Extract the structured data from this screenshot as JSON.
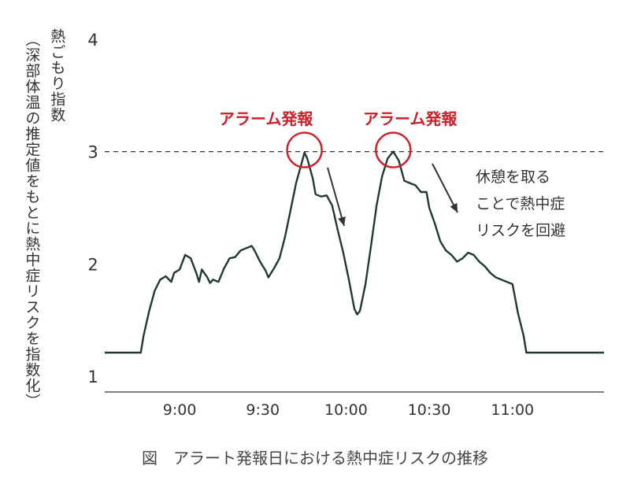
{
  "chart_data": {
    "type": "line",
    "title": "図　アラート発報日における熱中症リスクの推移",
    "ylabel_main": "熱ごもり指数",
    "ylabel_sub": "（深部体温の推定値をもとに熱中症リスクを指数化）",
    "ylim": [
      1,
      4
    ],
    "yticks": [
      "1",
      "2",
      "3",
      "4"
    ],
    "xticks": [
      {
        "label": "9:00",
        "t": 540
      },
      {
        "label": "9:30",
        "t": 570
      },
      {
        "label": "10:00",
        "t": 600
      },
      {
        "label": "10:30",
        "t": 630
      },
      {
        "label": "11:00",
        "t": 660
      }
    ],
    "xlim": [
      513,
      693
    ],
    "threshold": 3.0,
    "grid": false,
    "series": [
      {
        "color": "#1f3a34",
        "points": [
          [
            513,
            1.21
          ],
          [
            526,
            1.21
          ],
          [
            527,
            1.36
          ],
          [
            529,
            1.58
          ],
          [
            531,
            1.76
          ],
          [
            533,
            1.86
          ],
          [
            535,
            1.89
          ],
          [
            537,
            1.84
          ],
          [
            538,
            1.92
          ],
          [
            540,
            1.95
          ],
          [
            542,
            2.08
          ],
          [
            544,
            2.05
          ],
          [
            546,
            1.92
          ],
          [
            547,
            1.84
          ],
          [
            548,
            1.95
          ],
          [
            550,
            1.88
          ],
          [
            551,
            1.83
          ],
          [
            552,
            1.86
          ],
          [
            554,
            1.84
          ],
          [
            556,
            1.96
          ],
          [
            558,
            2.05
          ],
          [
            560,
            2.06
          ],
          [
            562,
            2.12
          ],
          [
            564,
            2.14
          ],
          [
            566,
            2.16
          ],
          [
            567,
            2.12
          ],
          [
            569,
            2.02
          ],
          [
            571,
            1.94
          ],
          [
            572,
            1.88
          ],
          [
            574,
            1.96
          ],
          [
            576,
            2.05
          ],
          [
            578,
            2.24
          ],
          [
            580,
            2.48
          ],
          [
            582,
            2.72
          ],
          [
            584,
            2.9
          ],
          [
            585,
            2.99
          ],
          [
            586,
            2.94
          ],
          [
            588,
            2.76
          ],
          [
            589,
            2.62
          ],
          [
            591,
            2.6
          ],
          [
            593,
            2.61
          ],
          [
            595,
            2.52
          ],
          [
            597,
            2.3
          ],
          [
            599,
            2.1
          ],
          [
            601,
            1.86
          ],
          [
            603,
            1.6
          ],
          [
            604,
            1.55
          ],
          [
            605,
            1.58
          ],
          [
            607,
            1.82
          ],
          [
            609,
            2.16
          ],
          [
            611,
            2.52
          ],
          [
            613,
            2.78
          ],
          [
            615,
            2.94
          ],
          [
            617,
            3.0
          ],
          [
            619,
            2.92
          ],
          [
            621,
            2.74
          ],
          [
            623,
            2.72
          ],
          [
            625,
            2.7
          ],
          [
            627,
            2.64
          ],
          [
            629,
            2.64
          ],
          [
            630,
            2.5
          ],
          [
            632,
            2.36
          ],
          [
            634,
            2.2
          ],
          [
            636,
            2.12
          ],
          [
            638,
            2.08
          ],
          [
            640,
            2.02
          ],
          [
            642,
            2.05
          ],
          [
            644,
            2.1
          ],
          [
            646,
            2.08
          ],
          [
            648,
            2.02
          ],
          [
            650,
            1.98
          ],
          [
            652,
            1.92
          ],
          [
            654,
            1.88
          ],
          [
            656,
            1.86
          ],
          [
            658,
            1.84
          ],
          [
            660,
            1.82
          ],
          [
            662,
            1.56
          ],
          [
            664,
            1.36
          ],
          [
            665,
            1.21
          ],
          [
            672,
            1.21
          ],
          [
            693,
            1.21
          ]
        ]
      }
    ],
    "alarm_label": "アラーム発報",
    "alarms": [
      {
        "label": "アラーム発報",
        "t": 585,
        "y": 3.0
      },
      {
        "label": "アラーム発報",
        "t": 617,
        "y": 3.0
      }
    ],
    "note": [
      "休憩を取る",
      "ことで熱中症",
      "リスクを回避"
    ]
  },
  "colors": {
    "line": "#1f3a34",
    "alarm": "#cc2029",
    "axis": "#333333"
  }
}
